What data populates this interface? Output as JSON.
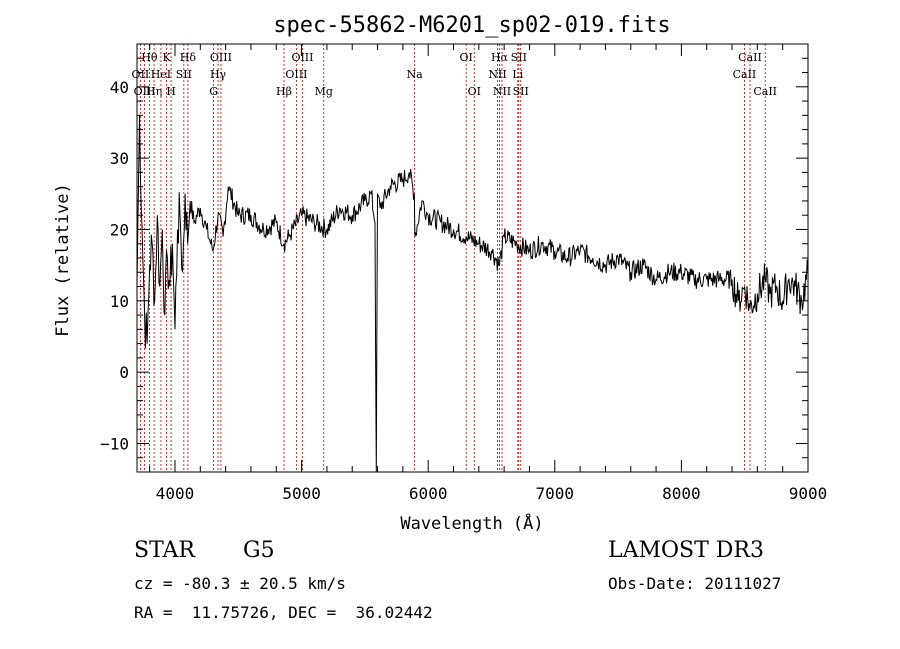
{
  "chart_data": {
    "type": "line",
    "title": "spec-55862-M6201_sp02-019.fits",
    "xlabel": "Wavelength (Å)",
    "ylabel": "Flux (relative)",
    "xlim": [
      3700,
      9000
    ],
    "ylim": [
      -14,
      46
    ],
    "xticks": [
      4000,
      5000,
      6000,
      7000,
      8000,
      9000
    ],
    "yticks": [
      -10,
      0,
      10,
      20,
      30,
      40
    ],
    "series": [
      {
        "name": "spectrum",
        "x": [
          3700,
          3720,
          3740,
          3760,
          3780,
          3800,
          3820,
          3840,
          3860,
          3880,
          3900,
          3920,
          3940,
          3960,
          3980,
          4000,
          4020,
          4040,
          4060,
          4080,
          4100,
          4120,
          4150,
          4200,
          4250,
          4300,
          4340,
          4380,
          4420,
          4500,
          4600,
          4700,
          4800,
          4861,
          4900,
          5000,
          5100,
          5200,
          5300,
          5400,
          5500,
          5550,
          5580,
          5590,
          5600,
          5620,
          5700,
          5800,
          5850,
          5890,
          5895,
          5950,
          6000,
          6100,
          6200,
          6300,
          6400,
          6500,
          6563,
          6600,
          6700,
          6800,
          6900,
          7000,
          7100,
          7200,
          7300,
          7400,
          7500,
          7600,
          7700,
          7800,
          7900,
          8000,
          8100,
          8200,
          8300,
          8400,
          8450,
          8500,
          8542,
          8600,
          8662,
          8700,
          8750,
          8800,
          8850,
          8900,
          8950,
          9000
        ],
        "y": [
          12,
          36,
          20,
          8,
          4,
          15,
          18,
          10,
          22,
          12,
          20,
          8,
          16,
          12,
          18,
          6,
          20,
          22,
          14,
          25,
          18,
          24,
          21,
          23,
          20,
          17,
          22,
          19,
          26,
          22,
          22,
          20,
          21,
          18,
          19,
          22,
          21,
          20,
          23,
          22,
          24,
          25,
          21,
          -14,
          25,
          23,
          26,
          27,
          28,
          25,
          19,
          24,
          22,
          21,
          20,
          19,
          18,
          17,
          15,
          19,
          18,
          17,
          18,
          17,
          16,
          17,
          16,
          15,
          16,
          14,
          15,
          13,
          14,
          14,
          13,
          13,
          13,
          13,
          10,
          12,
          9,
          11,
          13,
          11,
          12,
          10,
          13,
          12,
          10,
          14
        ]
      }
    ],
    "lines": [
      {
        "label": "Hθ",
        "x": 3798,
        "row": 1
      },
      {
        "label": "OII",
        "x": 3727,
        "row": 2
      },
      {
        "label": "OIII",
        "x": 3760,
        "row": 3
      },
      {
        "label": "Hη",
        "x": 3835,
        "row": 3
      },
      {
        "label": "HeI",
        "x": 3889,
        "row": 2
      },
      {
        "label": "K",
        "x": 3934,
        "row": 1
      },
      {
        "label": "SII",
        "x": 4070,
        "row": 2
      },
      {
        "label": "H",
        "x": 3969,
        "row": 3
      },
      {
        "label": "Hδ",
        "x": 4102,
        "row": 1
      },
      {
        "label": "OIII",
        "x": 4363,
        "row": 1
      },
      {
        "label": "Hγ",
        "x": 4340,
        "row": 2
      },
      {
        "label": "G",
        "x": 4305,
        "row": 3
      },
      {
        "label": "Hβ",
        "x": 4861,
        "row": 3
      },
      {
        "label": "OIII",
        "x": 5007,
        "row": 1
      },
      {
        "label": "OIII",
        "x": 4959,
        "row": 2
      },
      {
        "label": "Mg",
        "x": 5175,
        "row": 3
      },
      {
        "label": "Na",
        "x": 5893,
        "row": 2
      },
      {
        "label": "OI",
        "x": 6300,
        "row": 1
      },
      {
        "label": "OI",
        "x": 6364,
        "row": 3
      },
      {
        "label": "Hα",
        "x": 6563,
        "row": 1
      },
      {
        "label": "NII",
        "x": 6548,
        "row": 2
      },
      {
        "label": "NII",
        "x": 6583,
        "row": 3
      },
      {
        "label": "SII",
        "x": 6716,
        "row": 1
      },
      {
        "label": "Li",
        "x": 6708,
        "row": 2
      },
      {
        "label": "SII",
        "x": 6731,
        "row": 3
      },
      {
        "label": "CaII",
        "x": 8542,
        "row": 1
      },
      {
        "label": "CaII",
        "x": 8498,
        "row": 2
      },
      {
        "label": "CaII",
        "x": 8662,
        "row": 3
      }
    ]
  },
  "info": {
    "object_class": "STAR",
    "subclass": "G5",
    "survey": "LAMOST DR3",
    "cz": "cz = -80.3 ± 20.5 km/s",
    "obs_date": "Obs-Date: 20111027",
    "coords": "RA =  11.75726, DEC =  36.02442"
  }
}
